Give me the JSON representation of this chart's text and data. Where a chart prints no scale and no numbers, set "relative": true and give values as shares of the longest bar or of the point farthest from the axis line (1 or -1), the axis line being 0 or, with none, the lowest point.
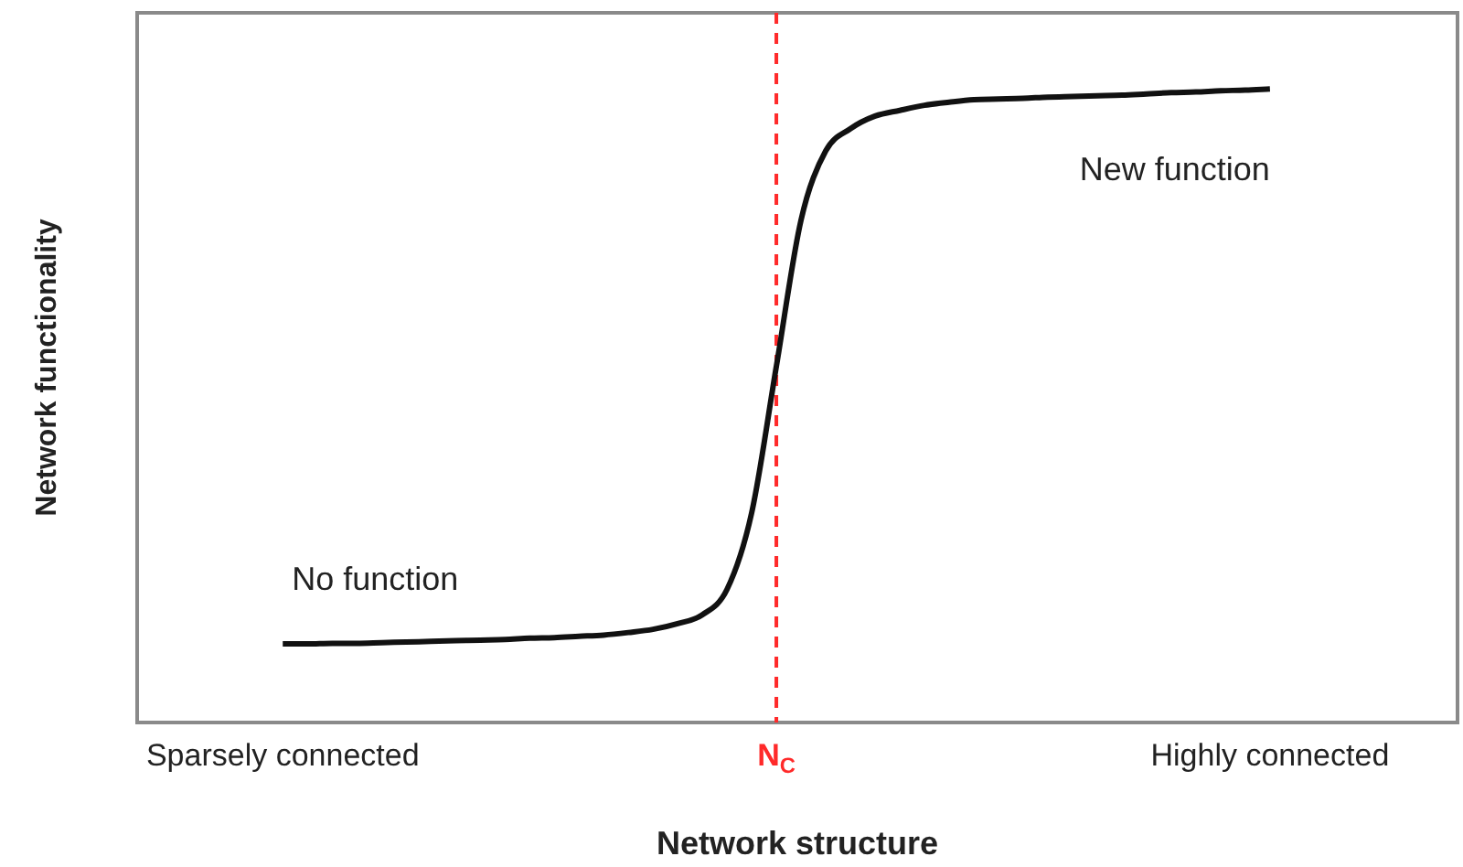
{
  "chart_data": {
    "type": "line",
    "relative": true,
    "xlabel": "Network structure",
    "ylabel": "Network functionality",
    "categories": [
      "Sparsely connected",
      null,
      null,
      null,
      null,
      null,
      null,
      null,
      null,
      null,
      null,
      null,
      null,
      null,
      null,
      null,
      null,
      null,
      null,
      null,
      "N$_{C}$",
      null,
      null,
      null,
      null,
      null,
      null,
      null,
      null,
      null,
      null,
      null,
      null,
      null,
      null,
      null,
      null,
      null,
      null,
      null,
      "Highly connected"
    ],
    "values": [
      0.124,
      0.124,
      0.125,
      0.125,
      0.126,
      0.127,
      0.128,
      0.129,
      0.13,
      0.131,
      0.133,
      0.134,
      0.136,
      0.138,
      0.142,
      0.147,
      0.156,
      0.17,
      0.21,
      0.331,
      0.562,
      0.793,
      0.902,
      0.937,
      0.957,
      0.966,
      0.974,
      0.979,
      0.983,
      0.984,
      0.985,
      0.987,
      0.988,
      0.989,
      0.99,
      0.992,
      0.994,
      0.995,
      0.997,
      0.998,
      1
    ],
    "color": "#111111",
    "ref_lines": [
      {
        "axis": "x",
        "value": "N$_{C}$",
        "color": "#ff2a2a",
        "line_style": "dashed"
      }
    ],
    "annotations": [
      "No function",
      "New function"
    ]
  }
}
